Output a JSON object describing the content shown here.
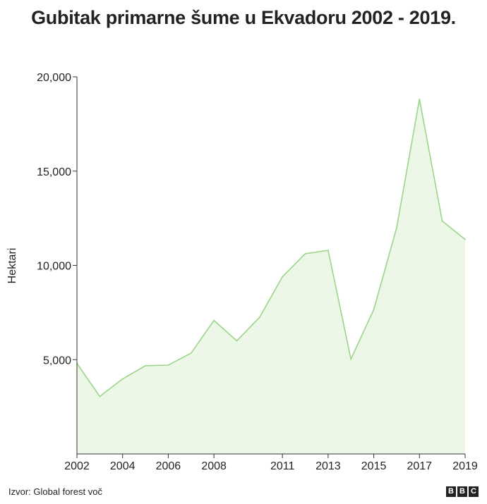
{
  "title": "Gubitak primarne šume u Ekvadoru 2002 - 2019.",
  "source": "Izvor: Global forest voč",
  "logo": [
    "B",
    "B",
    "C"
  ],
  "colors": {
    "line": "#9bd58a",
    "area": "#edf7e8",
    "axis": "#333333",
    "text": "#222222"
  },
  "chart_data": {
    "type": "area",
    "title": "Gubitak primarne šume u Ekvadoru 2002 - 2019.",
    "xlabel": "",
    "ylabel": "Hektari",
    "x": [
      2002,
      2003,
      2004,
      2005,
      2006,
      2007,
      2008,
      2009,
      2010,
      2011,
      2012,
      2013,
      2014,
      2015,
      2016,
      2017,
      2018,
      2019
    ],
    "values": [
      4800,
      3050,
      3980,
      4680,
      4710,
      5350,
      7080,
      6000,
      7250,
      9400,
      10620,
      10800,
      5030,
      7660,
      11980,
      18820,
      12350,
      11380
    ],
    "xlim": [
      2002,
      2019
    ],
    "ylim": [
      0,
      20000
    ],
    "x_ticks": [
      2002,
      2004,
      2006,
      2008,
      2011,
      2013,
      2015,
      2017,
      2019
    ],
    "x_tick_labels": [
      "2002",
      "2004",
      "2006",
      "2008",
      "2011",
      "2013",
      "2015",
      "2017",
      "2019"
    ],
    "y_ticks": [
      5000,
      10000,
      15000,
      20000
    ],
    "y_tick_labels": [
      "5,000",
      "10,000",
      "15,000",
      "20,000"
    ],
    "grid": false,
    "legend": "none"
  }
}
